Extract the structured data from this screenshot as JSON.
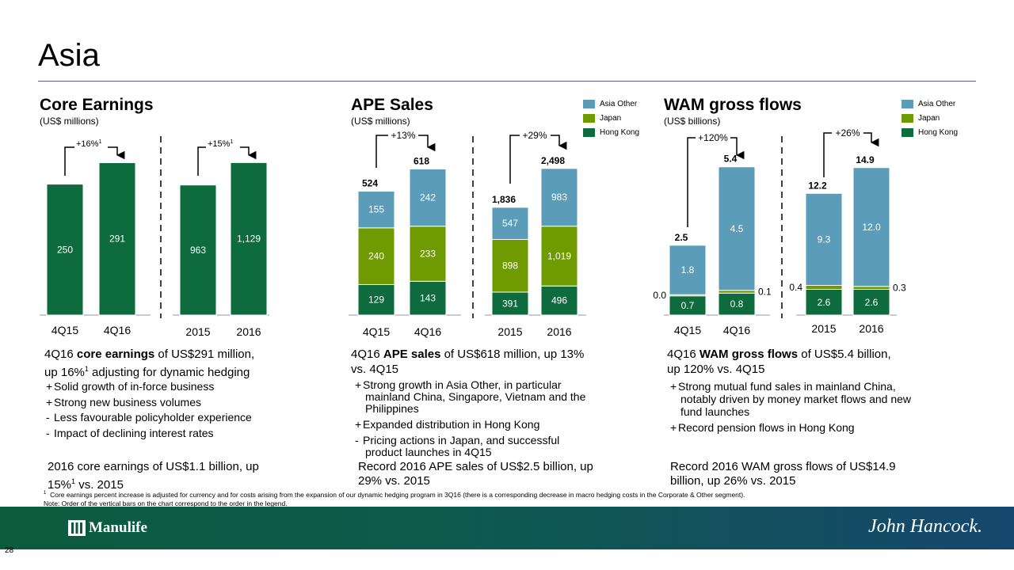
{
  "title": "Asia",
  "colors": {
    "hong_kong": "#0e6b3e",
    "japan": "#6f9a00",
    "asia_other": "#5b9db8",
    "band_start": "#0c5b3d",
    "band_end": "#16476e"
  },
  "legend": {
    "asia_other": "Asia Other",
    "japan": "Japan",
    "hong_kong": "Hong Kong"
  },
  "core": {
    "title": "Core Earnings",
    "subtitle": "(US$ millions)",
    "growth_q": "+16%",
    "growth_q_sup": "1",
    "growth_y": "+15%",
    "growth_y_sup": "1",
    "headline": {
      "a": "4Q16 ",
      "b": "core earnings",
      "c": " of US$291 million,",
      "d": "up 16%",
      "d_sup": "1",
      "e": " adjusting for dynamic hedging"
    },
    "bullets": [
      {
        "sign": "+",
        "text": "Solid growth of in-force business"
      },
      {
        "sign": "+",
        "text": "Strong new business volumes"
      },
      {
        "sign": "-",
        "text": "Less favourable policyholder experience"
      },
      {
        "sign": "-",
        "text": "Impact of declining interest rates"
      }
    ],
    "summary": {
      "l1": "2016 core earnings of US$1.1 billion, up",
      "l2a": "15%",
      "l2sup": "1",
      "l2b": " vs. 2015"
    }
  },
  "ape": {
    "title": "APE Sales",
    "subtitle": "(US$ millions)",
    "growth_q": "+13%",
    "growth_y": "+29%",
    "headline": {
      "a": "4Q16 ",
      "b": "APE sales",
      "c": " of US$618 million, up 13%",
      "d": "vs. 4Q15"
    },
    "bullets": [
      {
        "sign": "+",
        "lines": [
          "Strong growth in Asia Other, in particular",
          "mainland China, Singapore, Vietnam and the",
          "Philippines"
        ]
      },
      {
        "sign": "+",
        "lines": [
          "Expanded distribution in Hong Kong"
        ]
      },
      {
        "sign": "-",
        "lines": [
          "Pricing actions in Japan, and successful",
          "product launches in 4Q15"
        ]
      }
    ],
    "summary": {
      "l1": "Record 2016 APE sales of US$2.5 billion, up",
      "l2": "29% vs. 2015"
    }
  },
  "wam": {
    "title": "WAM gross flows",
    "subtitle": "(US$ billions)",
    "growth_q": "+120%",
    "growth_y": "+26%",
    "headline": {
      "a": "4Q16 ",
      "b": "WAM gross flows",
      "c": " of US$5.4 billion,",
      "d": "up 120% vs. 4Q15"
    },
    "bullets": [
      {
        "sign": "+",
        "lines": [
          "Strong mutual fund sales in mainland China,",
          "notably driven by money market flows and new",
          "fund launches"
        ]
      },
      {
        "sign": "+",
        "lines": [
          "Record pension flows in Hong Kong"
        ]
      }
    ],
    "summary": {
      "l1": "Record 2016 WAM gross flows of US$14.9",
      "l2": "billion, up 26% vs. 2015"
    }
  },
  "chart_data": [
    {
      "type": "bar",
      "title": "Core Earnings",
      "unit": "US$ millions",
      "categories": [
        "4Q15",
        "4Q16"
      ],
      "series": [
        {
          "name": "Hong Kong",
          "values": [
            250,
            291
          ]
        }
      ],
      "labels": [
        "250",
        "291"
      ],
      "ylim": [
        0,
        325
      ]
    },
    {
      "type": "bar",
      "title": "Core Earnings",
      "unit": "US$ millions",
      "categories": [
        "2015",
        "2016"
      ],
      "series": [
        {
          "name": "Hong Kong",
          "values": [
            963,
            1129
          ]
        }
      ],
      "labels": [
        "963",
        "1,129"
      ],
      "ylim": [
        0,
        1260
      ]
    },
    {
      "type": "bar",
      "stacked": true,
      "title": "APE Sales",
      "unit": "US$ millions",
      "categories": [
        "4Q15",
        "4Q16"
      ],
      "series": [
        {
          "name": "Hong Kong",
          "values": [
            129,
            143
          ],
          "labels": [
            "129",
            "143"
          ]
        },
        {
          "name": "Japan",
          "values": [
            240,
            233
          ],
          "labels": [
            "240",
            "233"
          ]
        },
        {
          "name": "Asia Other",
          "values": [
            155,
            242
          ],
          "labels": [
            "155",
            "242"
          ]
        }
      ],
      "totals": [
        "524",
        "618"
      ],
      "ylim": [
        0,
        720
      ]
    },
    {
      "type": "bar",
      "stacked": true,
      "title": "APE Sales",
      "unit": "US$ millions",
      "categories": [
        "2015",
        "2016"
      ],
      "series": [
        {
          "name": "Hong Kong",
          "values": [
            391,
            496
          ],
          "labels": [
            "391",
            "496"
          ]
        },
        {
          "name": "Japan",
          "values": [
            898,
            1019
          ],
          "labels": [
            "898",
            "1,019"
          ]
        },
        {
          "name": "Asia Other",
          "values": [
            547,
            983
          ],
          "labels": [
            "547",
            "983"
          ]
        }
      ],
      "totals": [
        "1,836",
        "2,498"
      ],
      "ylim": [
        0,
        2900
      ]
    },
    {
      "type": "bar",
      "stacked": true,
      "title": "WAM gross flows",
      "unit": "US$ billions",
      "categories": [
        "4Q15",
        "4Q16"
      ],
      "series": [
        {
          "name": "Hong Kong",
          "values": [
            0.7,
            0.8
          ],
          "labels": [
            "0.7",
            "0.8"
          ]
        },
        {
          "name": "Japan",
          "values": [
            0.0,
            0.1
          ],
          "labels": [
            "0.0",
            "0.1"
          ]
        },
        {
          "name": "Asia Other",
          "values": [
            1.8,
            4.5
          ],
          "labels": [
            "1.8",
            "4.5"
          ]
        }
      ],
      "totals": [
        "2.5",
        "5.4"
      ],
      "ylim": [
        0,
        6.2
      ]
    },
    {
      "type": "bar",
      "stacked": true,
      "title": "WAM gross flows",
      "unit": "US$ billions",
      "categories": [
        "2015",
        "2016"
      ],
      "series": [
        {
          "name": "Hong Kong",
          "values": [
            2.6,
            2.6
          ],
          "labels": [
            "2.6",
            "2.6"
          ]
        },
        {
          "name": "Japan",
          "values": [
            0.4,
            0.3
          ],
          "labels": [
            "0.4",
            "0.3"
          ]
        },
        {
          "name": "Asia Other",
          "values": [
            9.3,
            12.0
          ],
          "labels": [
            "9.3",
            "12.0"
          ]
        }
      ],
      "totals": [
        "12.2",
        "14.9"
      ],
      "ylim": [
        0,
        17.2
      ]
    }
  ],
  "footnote1_mark": "1",
  "footnote1": "Core earnings percent increase is adjusted for currency and for costs arising from the expansion of our dynamic hedging program in 3Q16 (there is a corresponding decrease in macro hedging costs in the Corporate & Other segment).",
  "footnote2": "Note: Order of the vertical bars on the chart correspond to the order in the legend.",
  "brand_left": "Manulife",
  "brand_right": "John Hancock.",
  "page_number": "28"
}
